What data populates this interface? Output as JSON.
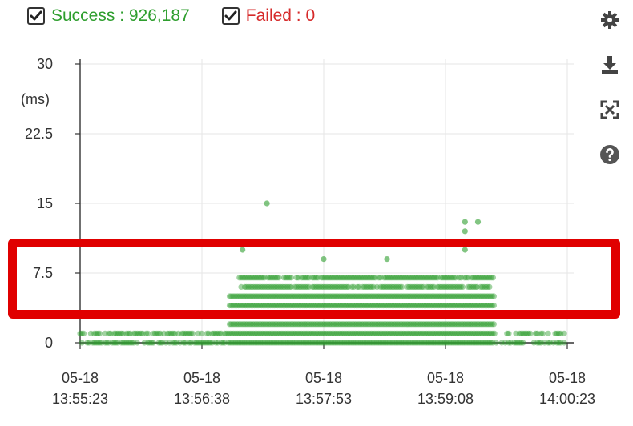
{
  "legend": {
    "success_label": "Success : 926,187",
    "failed_label": "Failed : 0",
    "success_checked": true,
    "failed_checked": true
  },
  "toolbar": {
    "icons": [
      "gear-icon",
      "download-icon",
      "fullscreen-icon",
      "help-icon"
    ]
  },
  "colors": {
    "success": "#2e9e2e",
    "failed": "#d62a2a",
    "highlight": "#e00000"
  },
  "chart_data": {
    "type": "scatter",
    "ylabel": "(ms)",
    "ylim": [
      0,
      30
    ],
    "y_ticks": [
      "0",
      "7.5",
      "15",
      "22.5",
      "30"
    ],
    "x_ticks": [
      {
        "date": "05-18",
        "time": "13:55:23"
      },
      {
        "date": "05-18",
        "time": "13:56:38"
      },
      {
        "date": "05-18",
        "time": "13:57:53"
      },
      {
        "date": "05-18",
        "time": "13:59:08"
      },
      {
        "date": "05-18",
        "time": "14:00:23"
      }
    ],
    "xlim": [
      "13:55:23",
      "14:00:23"
    ],
    "grid": true,
    "series": [
      {
        "name": "Success",
        "color": "#2e9e2e",
        "dense_ranges": [
          {
            "start": "13:55:23",
            "end": "14:00:23",
            "y_values": [
              0,
              1
            ]
          },
          {
            "start": "13:56:55",
            "end": "13:59:38",
            "y_values": [
              2,
              3,
              4,
              5
            ]
          },
          {
            "start": "13:57:00",
            "end": "13:59:38",
            "y_values": [
              6,
              7
            ]
          }
        ],
        "outliers": [
          {
            "x": "13:57:18",
            "y": 15
          },
          {
            "x": "13:57:03",
            "y": 10
          },
          {
            "x": "13:57:53",
            "y": 9
          },
          {
            "x": "13:58:32",
            "y": 9
          },
          {
            "x": "13:59:20",
            "y": 13
          },
          {
            "x": "13:59:28",
            "y": 13
          },
          {
            "x": "13:59:20",
            "y": 12
          },
          {
            "x": "13:59:20",
            "y": 10
          }
        ]
      }
    ]
  },
  "annotation": {
    "highlight_box": "red rectangle around 7.5 ms band"
  }
}
